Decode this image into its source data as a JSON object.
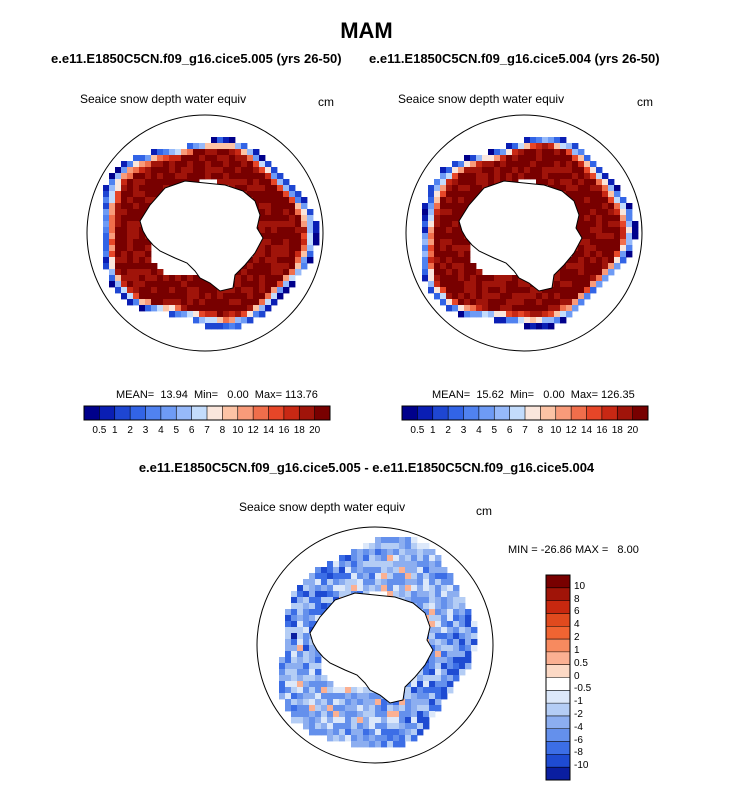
{
  "title": "MAM",
  "case_titles": {
    "left": "e.e11.E1850C5CN.f09_g16.cice5.005 (yrs 26-50)",
    "right": "e.e11.E1850C5CN.f09_g16.cice5.004 (yrs 26-50)"
  },
  "diff_title": "e.e11.E1850C5CN.f09_g16.cice5.005 - e.e11.E1850C5CN.f09_g16.cice5.004",
  "chart_data": [
    {
      "type": "heatmap",
      "projection": "south-polar-stereographic",
      "title": "Seaice snow depth water equiv",
      "units": "cm",
      "stats": {
        "mean": "13.94",
        "min": "0.00",
        "max": "113.76"
      },
      "stats_text": "MEAN=  13.94  Min=   0.00  Max= 113.76",
      "colorbar": {
        "orientation": "horizontal",
        "labels": [
          "0.5",
          "1",
          "2",
          "3",
          "4",
          "5",
          "6",
          "7",
          "8",
          "10",
          "12",
          "14",
          "16",
          "18",
          "20"
        ],
        "colors": [
          "#00008b",
          "#0a1eb4",
          "#1e46d2",
          "#3264e6",
          "#5082f0",
          "#6e9bf5",
          "#96b9fa",
          "#c3dcfc",
          "#fae6dc",
          "#fcc3a5",
          "#f89b7a",
          "#f06e4b",
          "#e64628",
          "#c82814",
          "#a0140a",
          "#780000"
        ]
      }
    },
    {
      "type": "heatmap",
      "projection": "south-polar-stereographic",
      "title": "Seaice snow depth water equiv",
      "units": "cm",
      "stats": {
        "mean": "15.62",
        "min": "0.00",
        "max": "126.35"
      },
      "stats_text": "MEAN=  15.62  Min=   0.00  Max= 126.35",
      "colorbar": {
        "orientation": "horizontal",
        "labels": [
          "0.5",
          "1",
          "2",
          "3",
          "4",
          "5",
          "6",
          "7",
          "8",
          "10",
          "12",
          "14",
          "16",
          "18",
          "20"
        ],
        "colors": [
          "#00008b",
          "#0a1eb4",
          "#1e46d2",
          "#3264e6",
          "#5082f0",
          "#6e9bf5",
          "#96b9fa",
          "#c3dcfc",
          "#fae6dc",
          "#fcc3a5",
          "#f89b7a",
          "#f06e4b",
          "#e64628",
          "#c82814",
          "#a0140a",
          "#780000"
        ]
      }
    },
    {
      "type": "heatmap",
      "projection": "south-polar-stereographic",
      "title": "Seaice snow depth water equiv",
      "units": "cm",
      "stats": {
        "min": "-26.86",
        "max": "8.00"
      },
      "stats_text": "MIN = -26.86 MAX =   8.00",
      "colorbar": {
        "orientation": "vertical",
        "labels": [
          "10",
          "8",
          "6",
          "4",
          "2",
          "1",
          "0.5",
          "0",
          "-0.5",
          "-1",
          "-2",
          "-4",
          "-6",
          "-8",
          "-10"
        ],
        "colors": [
          "#780000",
          "#a01408",
          "#c8280f",
          "#e04a1e",
          "#f06432",
          "#f78a5f",
          "#fbb092",
          "#fcd9c5",
          "#ffffff",
          "#dce8fa",
          "#b4cdf5",
          "#8caef0",
          "#6490ec",
          "#3c6ee6",
          "#1e4bd2",
          "#0a1ea0"
        ]
      }
    }
  ]
}
